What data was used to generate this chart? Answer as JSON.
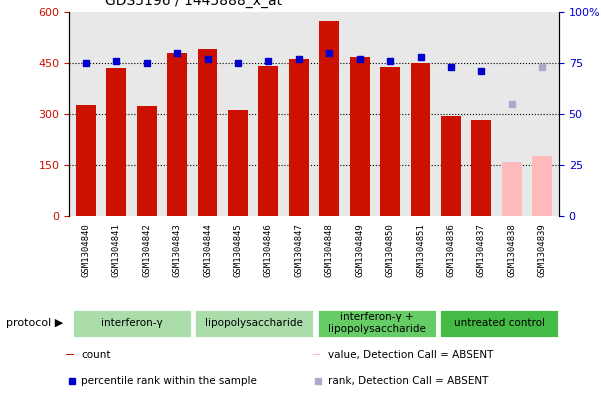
{
  "title": "GDS5196 / 1445888_x_at",
  "samples": [
    "GSM1304840",
    "GSM1304841",
    "GSM1304842",
    "GSM1304843",
    "GSM1304844",
    "GSM1304845",
    "GSM1304846",
    "GSM1304847",
    "GSM1304848",
    "GSM1304849",
    "GSM1304850",
    "GSM1304851",
    "GSM1304836",
    "GSM1304837",
    "GSM1304838",
    "GSM1304839"
  ],
  "counts": [
    325,
    435,
    323,
    478,
    490,
    312,
    440,
    462,
    572,
    467,
    437,
    450,
    293,
    282,
    160,
    178
  ],
  "absent_flags": [
    false,
    false,
    false,
    false,
    false,
    false,
    false,
    false,
    false,
    false,
    false,
    false,
    false,
    false,
    true,
    true
  ],
  "percentile_ranks": [
    75,
    76,
    75,
    80,
    77,
    75,
    76,
    77,
    80,
    77,
    76,
    78,
    73,
    71,
    55,
    73
  ],
  "absent_rank_flags": [
    false,
    false,
    false,
    false,
    false,
    false,
    false,
    false,
    false,
    false,
    false,
    false,
    false,
    false,
    true,
    true
  ],
  "groups": [
    {
      "label": "interferon-γ",
      "start": 0,
      "end": 3,
      "color": "#aaddaa"
    },
    {
      "label": "lipopolysaccharide",
      "start": 4,
      "end": 7,
      "color": "#aaddaa"
    },
    {
      "label": "interferon-γ +\nlipopolysaccharide",
      "start": 8,
      "end": 11,
      "color": "#66cc66"
    },
    {
      "label": "untreated control",
      "start": 12,
      "end": 15,
      "color": "#44bb44"
    }
  ],
  "bar_color_present": "#cc1100",
  "bar_color_absent": "#ffbbbb",
  "dot_color_present": "#0000cc",
  "dot_color_absent": "#aaaacc",
  "ylim_left": [
    0,
    600
  ],
  "ylim_right": [
    0,
    100
  ],
  "yticks_left": [
    0,
    150,
    300,
    450,
    600
  ],
  "yticks_right": [
    0,
    25,
    50,
    75,
    100
  ],
  "sample_bg": "#cccccc",
  "plot_bg": "#e8e8e8"
}
